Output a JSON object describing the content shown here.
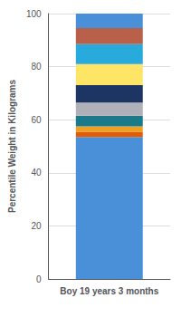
{
  "chart_data": {
    "type": "bar",
    "categories": [
      "Boy 19 years 3 months"
    ],
    "series": [
      {
        "color": "#4a90d9",
        "values": [
          53.5
        ]
      },
      {
        "color": "#e05c0a",
        "values": [
          2.0
        ]
      },
      {
        "color": "#f0a020",
        "values": [
          2.0
        ]
      },
      {
        "color": "#1a7a8a",
        "values": [
          4.0
        ]
      },
      {
        "color": "#b0b0b8",
        "values": [
          5.0
        ]
      },
      {
        "color": "#1c3562",
        "values": [
          6.5
        ]
      },
      {
        "color": "#ffe566",
        "values": [
          8.0
        ]
      },
      {
        "color": "#29aadd",
        "values": [
          7.5
        ]
      },
      {
        "color": "#b8604a",
        "values": [
          6.0
        ]
      },
      {
        "color": "#4a90d9",
        "values": [
          5.5
        ]
      }
    ],
    "stacked": true,
    "ylabel": "Percentile Weight in Kilograms",
    "ylim": [
      0,
      100
    ],
    "yticks": [
      0,
      20,
      40,
      60,
      80,
      100
    ],
    "grid": true
  }
}
